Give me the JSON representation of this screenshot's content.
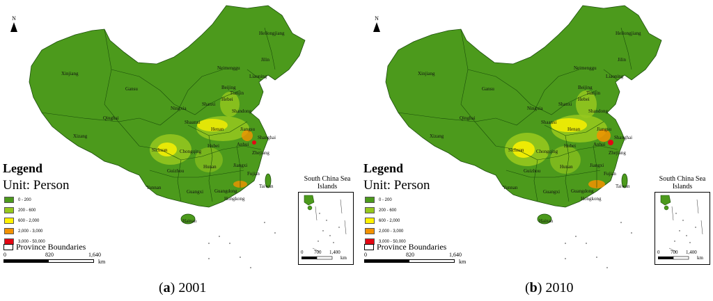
{
  "panels": [
    {
      "id": "a",
      "caption_letter": "a",
      "caption_year": "2001",
      "north_label": "N",
      "legend_title": "Legend",
      "legend_unit": "Unit: Person",
      "legend_items": [
        {
          "label": "0 - 200",
          "color": "#4c9a1c"
        },
        {
          "label": "200 - 600",
          "color": "#96c81e"
        },
        {
          "label": "600 - 2,000",
          "color": "#fff200"
        },
        {
          "label": "2,000 - 3,000",
          "color": "#f39200"
        },
        {
          "label": "3,000 - 50,000",
          "color": "#e30613"
        }
      ],
      "boundary_label": "Province Boundaries",
      "scale_ticks": [
        "0",
        "820",
        "1,640"
      ],
      "scale_unit": "km",
      "inset_title": "South China Sea Islands",
      "inset_scale_ticks": [
        "0",
        "700",
        "1,400"
      ],
      "inset_scale_unit": "km",
      "provinces": [
        "Xinjiang",
        "Xizang",
        "Qinghai",
        "Gansu",
        "Neimenggu",
        "Heilongjiang",
        "Jilin",
        "Liaoning",
        "Beijing",
        "Tianjin",
        "Hebei",
        "Shanxi",
        "Shandong",
        "Ningxia",
        "Shaanxi",
        "Henan",
        "Jiangsu",
        "Shanghai",
        "Anhui",
        "Hubei",
        "Sichuan",
        "Chongqing",
        "Zhejiang",
        "Guizhou",
        "Hunan",
        "Jiangxi",
        "Fujian",
        "Yunnan",
        "Guangxi",
        "Guangdong",
        "Hongkong",
        "Taiwan",
        "Hainan"
      ]
    },
    {
      "id": "b",
      "caption_letter": "b",
      "caption_year": "2010",
      "north_label": "N",
      "legend_title": "Legend",
      "legend_unit": "Unit: Person",
      "legend_items": [
        {
          "label": "0 - 200",
          "color": "#4c9a1c"
        },
        {
          "label": "200 - 600",
          "color": "#96c81e"
        },
        {
          "label": "600 - 2,000",
          "color": "#fff200"
        },
        {
          "label": "2,000 - 3,000",
          "color": "#f39200"
        },
        {
          "label": "3,000 - 50,000",
          "color": "#e30613"
        }
      ],
      "boundary_label": "Province Boundaries",
      "scale_ticks": [
        "0",
        "820",
        "1,640"
      ],
      "scale_unit": "km",
      "inset_title": "South China Sea Islands",
      "inset_scale_ticks": [
        "0",
        "700",
        "1,400"
      ],
      "inset_scale_unit": "km",
      "provinces": [
        "Xinjiang",
        "Xizang",
        "Qinghai",
        "Gansu",
        "Neimenggu",
        "Heilongjiang",
        "Jilin",
        "Liaoning",
        "Beijing",
        "Tianjin",
        "Hebei",
        "Shanxi",
        "Shandong",
        "Ningxia",
        "Shaanxi",
        "Henan",
        "Jiangsu",
        "Shanghai",
        "Anhui",
        "Hubei",
        "Sichuan",
        "Chongqing",
        "Zhejiang",
        "Guizhou",
        "Hunan",
        "Jiangxi",
        "Fujian",
        "Yunnan",
        "Guangxi",
        "Guangdong",
        "Hongkong",
        "Taiwan",
        "Hainan"
      ]
    }
  ]
}
